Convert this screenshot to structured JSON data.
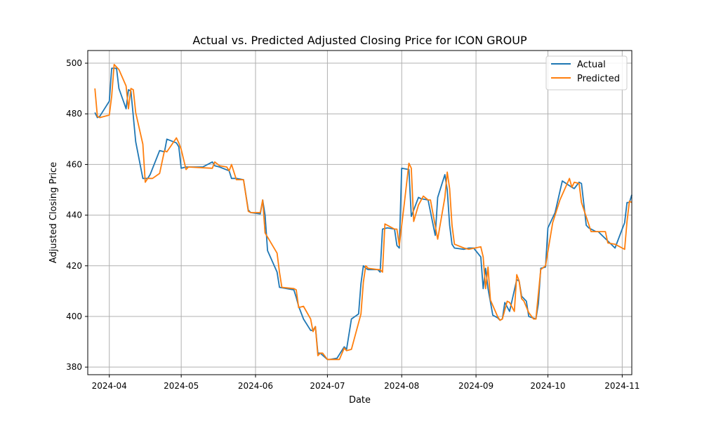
{
  "chart_data": {
    "type": "line",
    "title": "Actual vs. Predicted Adjusted Closing Price for ICON GROUP",
    "xlabel": "Date",
    "ylabel": "Adjusted Closing Price",
    "xlim": [
      "2024-03-23",
      "2024-11-05"
    ],
    "ylim": [
      377,
      505
    ],
    "grid": true,
    "legend_position": "top-right",
    "x_ticks": [
      {
        "date": "2024-04-01",
        "label": "2024-04"
      },
      {
        "date": "2024-05-01",
        "label": "2024-05"
      },
      {
        "date": "2024-06-01",
        "label": "2024-06"
      },
      {
        "date": "2024-07-01",
        "label": "2024-07"
      },
      {
        "date": "2024-08-01",
        "label": "2024-08"
      },
      {
        "date": "2024-09-01",
        "label": "2024-09"
      },
      {
        "date": "2024-10-01",
        "label": "2024-10"
      },
      {
        "date": "2024-11-01",
        "label": "2024-11"
      }
    ],
    "y_ticks": [
      380,
      400,
      420,
      440,
      460,
      480,
      500
    ],
    "series": [
      {
        "name": "Actual",
        "color": "#1f77b4",
        "points": [
          [
            "2024-03-26",
            480.5
          ],
          [
            "2024-03-27",
            478.5
          ],
          [
            "2024-03-28",
            479.0
          ],
          [
            "2024-04-01",
            485.0
          ],
          [
            "2024-04-02",
            498.0
          ],
          [
            "2024-04-04",
            498.0
          ],
          [
            "2024-04-05",
            490.0
          ],
          [
            "2024-04-08",
            482.0
          ],
          [
            "2024-04-09",
            489.5
          ],
          [
            "2024-04-10",
            489.0
          ],
          [
            "2024-04-12",
            469.0
          ],
          [
            "2024-04-15",
            454.5
          ],
          [
            "2024-04-17",
            454.5
          ],
          [
            "2024-04-18",
            456.0
          ],
          [
            "2024-04-22",
            465.5
          ],
          [
            "2024-04-24",
            465.0
          ],
          [
            "2024-04-25",
            470.0
          ],
          [
            "2024-04-29",
            468.5
          ],
          [
            "2024-04-30",
            467.0
          ],
          [
            "2024-05-01",
            458.5
          ],
          [
            "2024-05-03",
            459.0
          ],
          [
            "2024-05-10",
            459.0
          ],
          [
            "2024-05-14",
            461.0
          ],
          [
            "2024-05-15",
            459.5
          ],
          [
            "2024-05-17",
            459.0
          ],
          [
            "2024-05-21",
            457.5
          ],
          [
            "2024-05-22",
            454.5
          ],
          [
            "2024-05-24",
            454.5
          ],
          [
            "2024-05-27",
            454.0
          ],
          [
            "2024-05-29",
            442.0
          ],
          [
            "2024-05-30",
            441.0
          ],
          [
            "2024-06-03",
            440.5
          ],
          [
            "2024-06-04",
            446.0
          ],
          [
            "2024-06-05",
            440.0
          ],
          [
            "2024-06-06",
            426.0
          ],
          [
            "2024-06-10",
            417.5
          ],
          [
            "2024-06-11",
            411.5
          ],
          [
            "2024-06-17",
            410.5
          ],
          [
            "2024-06-18",
            407.5
          ],
          [
            "2024-06-19",
            404.0
          ],
          [
            "2024-06-21",
            399.0
          ],
          [
            "2024-06-24",
            394.5
          ],
          [
            "2024-06-25",
            394.5
          ],
          [
            "2024-06-26",
            396.0
          ],
          [
            "2024-06-27",
            385.5
          ],
          [
            "2024-06-28",
            385.5
          ],
          [
            "2024-07-01",
            383.0
          ],
          [
            "2024-07-02",
            383.0
          ],
          [
            "2024-07-05",
            383.5
          ],
          [
            "2024-07-08",
            388.0
          ],
          [
            "2024-07-09",
            387.0
          ],
          [
            "2024-07-11",
            399.0
          ],
          [
            "2024-07-14",
            401.0
          ],
          [
            "2024-07-15",
            413.0
          ],
          [
            "2024-07-16",
            420.0
          ],
          [
            "2024-07-17",
            419.0
          ],
          [
            "2024-07-18",
            418.5
          ],
          [
            "2024-07-22",
            418.5
          ],
          [
            "2024-07-23",
            417.5
          ],
          [
            "2024-07-24",
            434.5
          ],
          [
            "2024-07-26",
            435.0
          ],
          [
            "2024-07-29",
            434.5
          ],
          [
            "2024-07-30",
            428.0
          ],
          [
            "2024-07-31",
            427.0
          ],
          [
            "2024-08-01",
            458.5
          ],
          [
            "2024-08-04",
            458.0
          ],
          [
            "2024-08-05",
            439.5
          ],
          [
            "2024-08-08",
            447.0
          ],
          [
            "2024-08-09",
            446.5
          ],
          [
            "2024-08-12",
            446.0
          ],
          [
            "2024-08-15",
            432.0
          ],
          [
            "2024-08-16",
            447.0
          ],
          [
            "2024-08-19",
            456.0
          ],
          [
            "2024-08-20",
            450.0
          ],
          [
            "2024-08-21",
            436.0
          ],
          [
            "2024-08-22",
            428.5
          ],
          [
            "2024-08-23",
            427.0
          ],
          [
            "2024-08-27",
            426.5
          ],
          [
            "2024-08-29",
            427.0
          ],
          [
            "2024-08-31",
            427.0
          ],
          [
            "2024-09-03",
            423.5
          ],
          [
            "2024-09-04",
            411.0
          ],
          [
            "2024-09-05",
            419.0
          ],
          [
            "2024-09-06",
            411.0
          ],
          [
            "2024-09-08",
            400.5
          ],
          [
            "2024-09-10",
            399.5
          ],
          [
            "2024-09-11",
            398.5
          ],
          [
            "2024-09-12",
            399.0
          ],
          [
            "2024-09-13",
            405.5
          ],
          [
            "2024-09-15",
            402.0
          ],
          [
            "2024-09-18",
            414.5
          ],
          [
            "2024-09-19",
            414.0
          ],
          [
            "2024-09-20",
            408.0
          ],
          [
            "2024-09-22",
            406.0
          ],
          [
            "2024-09-23",
            400.0
          ],
          [
            "2024-09-26",
            399.0
          ],
          [
            "2024-09-27",
            405.0
          ],
          [
            "2024-09-28",
            419.0
          ],
          [
            "2024-09-30",
            419.5
          ],
          [
            "2024-10-01",
            435.0
          ],
          [
            "2024-10-04",
            441.0
          ],
          [
            "2024-10-07",
            453.5
          ],
          [
            "2024-10-11",
            451.0
          ],
          [
            "2024-10-12",
            450.5
          ],
          [
            "2024-10-14",
            453.0
          ],
          [
            "2024-10-15",
            452.5
          ],
          [
            "2024-10-17",
            436.0
          ],
          [
            "2024-10-18",
            435.0
          ],
          [
            "2024-10-21",
            433.5
          ],
          [
            "2024-10-22",
            433.5
          ],
          [
            "2024-10-29",
            427.0
          ],
          [
            "2024-11-01",
            434.5
          ],
          [
            "2024-11-02",
            437.0
          ],
          [
            "2024-11-03",
            445.0
          ],
          [
            "2024-11-04",
            445.0
          ],
          [
            "2024-11-05",
            448.0
          ]
        ]
      },
      {
        "name": "Predicted",
        "color": "#ff7f0e",
        "points": [
          [
            "2024-03-26",
            490.0
          ],
          [
            "2024-03-27",
            479.0
          ],
          [
            "2024-03-28",
            478.5
          ],
          [
            "2024-04-01",
            479.5
          ],
          [
            "2024-04-02",
            487.0
          ],
          [
            "2024-04-03",
            499.5
          ],
          [
            "2024-04-05",
            497.5
          ],
          [
            "2024-04-08",
            491.0
          ],
          [
            "2024-04-09",
            482.0
          ],
          [
            "2024-04-10",
            490.0
          ],
          [
            "2024-04-11",
            489.5
          ],
          [
            "2024-04-12",
            480.5
          ],
          [
            "2024-04-15",
            468.0
          ],
          [
            "2024-04-16",
            453.0
          ],
          [
            "2024-04-17",
            454.5
          ],
          [
            "2024-04-19",
            454.5
          ],
          [
            "2024-04-22",
            456.5
          ],
          [
            "2024-04-24",
            465.5
          ],
          [
            "2024-04-25",
            465.0
          ],
          [
            "2024-04-29",
            470.5
          ],
          [
            "2024-04-30",
            468.5
          ],
          [
            "2024-05-01",
            466.0
          ],
          [
            "2024-05-03",
            458.0
          ],
          [
            "2024-05-04",
            459.0
          ],
          [
            "2024-05-14",
            458.5
          ],
          [
            "2024-05-15",
            461.0
          ],
          [
            "2024-05-17",
            459.5
          ],
          [
            "2024-05-20",
            459.0
          ],
          [
            "2024-05-21",
            457.5
          ],
          [
            "2024-05-22",
            460.0
          ],
          [
            "2024-05-24",
            454.0
          ],
          [
            "2024-05-27",
            454.0
          ],
          [
            "2024-05-29",
            441.5
          ],
          [
            "2024-05-30",
            441.0
          ],
          [
            "2024-06-03",
            441.0
          ],
          [
            "2024-06-04",
            446.0
          ],
          [
            "2024-06-05",
            433.0
          ],
          [
            "2024-06-10",
            425.0
          ],
          [
            "2024-06-11",
            417.5
          ],
          [
            "2024-06-12",
            411.5
          ],
          [
            "2024-06-17",
            411.0
          ],
          [
            "2024-06-18",
            410.5
          ],
          [
            "2024-06-19",
            403.5
          ],
          [
            "2024-06-21",
            404.0
          ],
          [
            "2024-06-24",
            399.0
          ],
          [
            "2024-06-25",
            394.0
          ],
          [
            "2024-06-26",
            396.0
          ],
          [
            "2024-06-27",
            384.5
          ],
          [
            "2024-06-28",
            385.5
          ],
          [
            "2024-06-29",
            385.5
          ],
          [
            "2024-07-01",
            383.0
          ],
          [
            "2024-07-06",
            383.0
          ],
          [
            "2024-07-08",
            387.5
          ],
          [
            "2024-07-09",
            386.5
          ],
          [
            "2024-07-11",
            387.0
          ],
          [
            "2024-07-15",
            401.0
          ],
          [
            "2024-07-16",
            413.5
          ],
          [
            "2024-07-17",
            420.0
          ],
          [
            "2024-07-18",
            419.0
          ],
          [
            "2024-07-22",
            418.5
          ],
          [
            "2024-07-23",
            418.5
          ],
          [
            "2024-07-24",
            417.5
          ],
          [
            "2024-07-25",
            436.5
          ],
          [
            "2024-07-29",
            434.5
          ],
          [
            "2024-07-30",
            434.5
          ],
          [
            "2024-07-31",
            428.0
          ],
          [
            "2024-08-02",
            444.0
          ],
          [
            "2024-08-04",
            460.5
          ],
          [
            "2024-08-05",
            458.5
          ],
          [
            "2024-08-06",
            437.5
          ],
          [
            "2024-08-08",
            444.0
          ],
          [
            "2024-08-10",
            447.5
          ],
          [
            "2024-08-12",
            446.0
          ],
          [
            "2024-08-13",
            446.0
          ],
          [
            "2024-08-16",
            430.5
          ],
          [
            "2024-08-19",
            447.0
          ],
          [
            "2024-08-20",
            457.0
          ],
          [
            "2024-08-21",
            450.5
          ],
          [
            "2024-08-22",
            436.0
          ],
          [
            "2024-08-23",
            428.5
          ],
          [
            "2024-08-27",
            427.0
          ],
          [
            "2024-08-29",
            426.5
          ],
          [
            "2024-09-03",
            427.5
          ],
          [
            "2024-09-04",
            423.5
          ],
          [
            "2024-09-05",
            411.0
          ],
          [
            "2024-09-06",
            419.5
          ],
          [
            "2024-09-07",
            406.5
          ],
          [
            "2024-09-10",
            400.0
          ],
          [
            "2024-09-11",
            398.5
          ],
          [
            "2024-09-12",
            399.0
          ],
          [
            "2024-09-14",
            406.0
          ],
          [
            "2024-09-15",
            405.5
          ],
          [
            "2024-09-17",
            402.0
          ],
          [
            "2024-09-18",
            416.5
          ],
          [
            "2024-09-19",
            414.0
          ],
          [
            "2024-09-20",
            407.0
          ],
          [
            "2024-09-21",
            406.0
          ],
          [
            "2024-09-23",
            401.5
          ],
          [
            "2024-09-25",
            399.0
          ],
          [
            "2024-09-26",
            399.0
          ],
          [
            "2024-09-28",
            418.5
          ],
          [
            "2024-09-30",
            420.0
          ],
          [
            "2024-10-03",
            437.0
          ],
          [
            "2024-10-06",
            446.0
          ],
          [
            "2024-10-10",
            454.5
          ],
          [
            "2024-10-11",
            451.0
          ],
          [
            "2024-10-12",
            453.0
          ],
          [
            "2024-10-14",
            452.5
          ],
          [
            "2024-10-15",
            445.0
          ],
          [
            "2024-10-18",
            436.5
          ],
          [
            "2024-10-19",
            433.5
          ],
          [
            "2024-10-25",
            433.5
          ],
          [
            "2024-10-26",
            429.0
          ],
          [
            "2024-10-29",
            428.5
          ],
          [
            "2024-11-02",
            426.5
          ],
          [
            "2024-11-03",
            437.5
          ],
          [
            "2024-11-04",
            445.5
          ],
          [
            "2024-11-05",
            445.0
          ]
        ]
      }
    ]
  }
}
